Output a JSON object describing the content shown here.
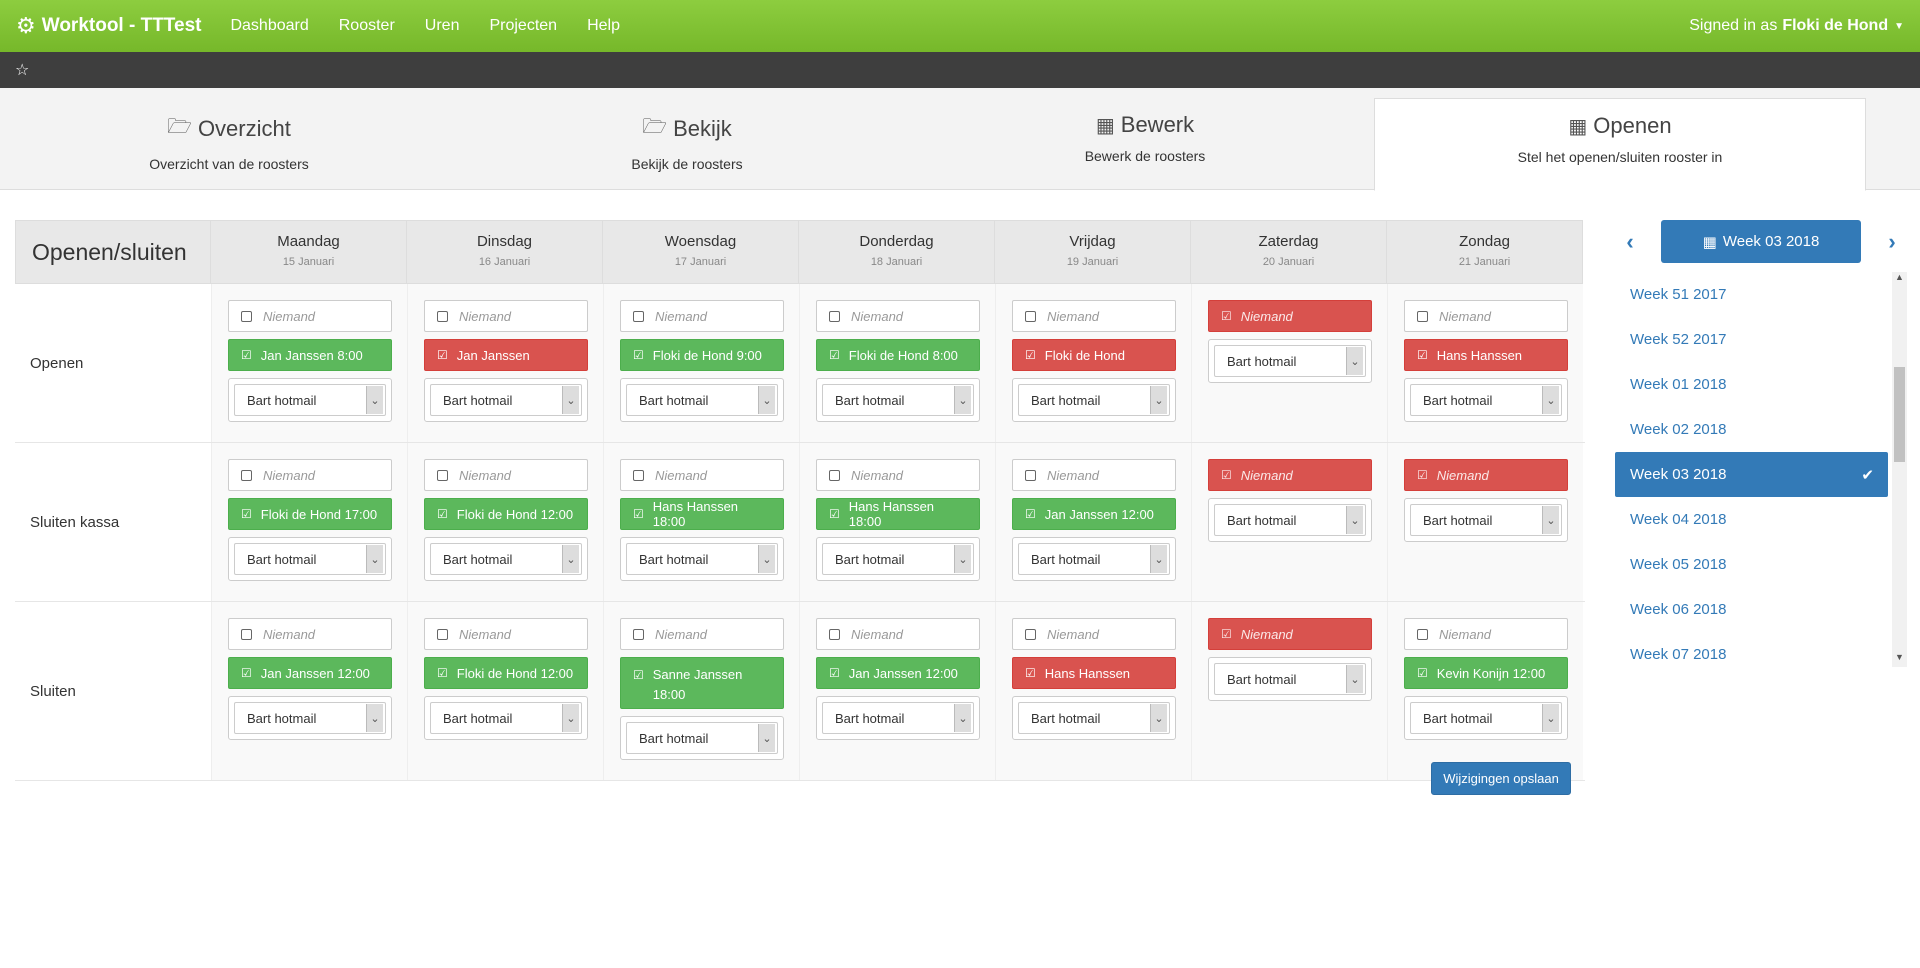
{
  "brand": "Worktool - TTTest",
  "nav": [
    "Dashboard",
    "Rooster",
    "Uren",
    "Projecten",
    "Help"
  ],
  "signed_in_prefix": "Signed in as",
  "signed_in_user": "Floki de Hond",
  "tabs": [
    {
      "icon": "folder-open-icon",
      "title": "Overzicht",
      "subtitle": "Overzicht van de roosters"
    },
    {
      "icon": "folder-open-icon",
      "title": "Bekijk",
      "subtitle": "Bekijk de roosters"
    },
    {
      "icon": "calendar-icon",
      "title": "Bewerk",
      "subtitle": "Bewerk de roosters"
    },
    {
      "icon": "calendar-icon",
      "title": "Openen",
      "subtitle": "Stel het openen/sluiten rooster in"
    }
  ],
  "table_title": "Openen/sluiten",
  "days": [
    {
      "name": "Maandag",
      "date": "15 Januari"
    },
    {
      "name": "Dinsdag",
      "date": "16 Januari"
    },
    {
      "name": "Woensdag",
      "date": "17 Januari"
    },
    {
      "name": "Donderdag",
      "date": "18 Januari"
    },
    {
      "name": "Vrijdag",
      "date": "19 Januari"
    },
    {
      "name": "Zaterdag",
      "date": "20 Januari"
    },
    {
      "name": "Zondag",
      "date": "21 Januari"
    }
  ],
  "niemand": "Niemand",
  "select_value": "Bart hotmail",
  "rows": [
    {
      "label": "Openen",
      "cells": [
        {
          "nobody": false,
          "assigned": "Jan Janssen 8:00",
          "status": "green"
        },
        {
          "nobody": false,
          "assigned": "Jan Janssen",
          "status": "red"
        },
        {
          "nobody": false,
          "assigned": "Floki de Hond 9:00",
          "status": "green"
        },
        {
          "nobody": false,
          "assigned": "Floki de Hond 8:00",
          "status": "green"
        },
        {
          "nobody": false,
          "assigned": "Floki de Hond",
          "status": "red"
        },
        {
          "nobody": true,
          "assigned": null,
          "status": "red"
        },
        {
          "nobody": false,
          "assigned": "Hans Hanssen",
          "status": "red"
        }
      ]
    },
    {
      "label": "Sluiten kassa",
      "cells": [
        {
          "nobody": false,
          "assigned": "Floki de Hond 17:00",
          "status": "green"
        },
        {
          "nobody": false,
          "assigned": "Floki de Hond 12:00",
          "status": "green"
        },
        {
          "nobody": false,
          "assigned": "Hans Hanssen 18:00",
          "status": "green"
        },
        {
          "nobody": false,
          "assigned": "Hans Hanssen 18:00",
          "status": "green"
        },
        {
          "nobody": false,
          "assigned": "Jan Janssen 12:00",
          "status": "green"
        },
        {
          "nobody": true,
          "assigned": null,
          "status": "red"
        },
        {
          "nobody": true,
          "assigned": null,
          "status": "red"
        }
      ]
    },
    {
      "label": "Sluiten",
      "cells": [
        {
          "nobody": false,
          "assigned": "Jan Janssen 12:00",
          "status": "green"
        },
        {
          "nobody": false,
          "assigned": "Floki de Hond 12:00",
          "status": "green"
        },
        {
          "nobody": false,
          "assigned": "Sanne Janssen 18:00",
          "status": "green"
        },
        {
          "nobody": false,
          "assigned": "Jan Janssen 12:00",
          "status": "green"
        },
        {
          "nobody": false,
          "assigned": "Hans Hanssen",
          "status": "red"
        },
        {
          "nobody": true,
          "assigned": null,
          "status": "red"
        },
        {
          "nobody": false,
          "assigned": "Kevin Konijn 12:00",
          "status": "green"
        }
      ]
    }
  ],
  "save_label": "Wijzigingen opslaan",
  "current_week": "Week 03 2018",
  "weeks": [
    "Week 51 2017",
    "Week 52 2017",
    "Week 01 2018",
    "Week 02 2018",
    "Week 03 2018",
    "Week 04 2018",
    "Week 05 2018",
    "Week 06 2018",
    "Week 07 2018"
  ],
  "active_week_index": 4,
  "colors": {
    "brand_green": "#7dc233",
    "ok_green": "#5cb85c",
    "warn_red": "#d9534f",
    "primary_blue": "#337ab7"
  }
}
